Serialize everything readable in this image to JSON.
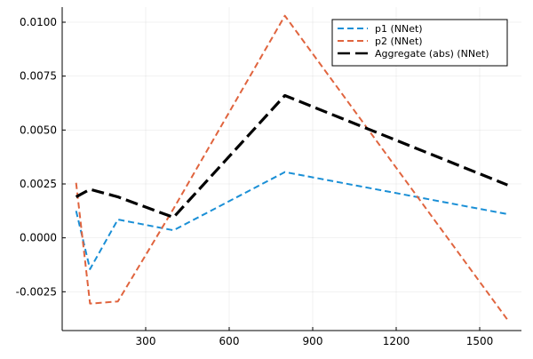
{
  "chart_data": {
    "type": "line",
    "title": "",
    "xlabel": "",
    "ylabel": "",
    "xlim": [
      0,
      1650
    ],
    "ylim": [
      -0.0043,
      0.0107
    ],
    "grid": true,
    "legend_position": "top-right",
    "x_ticks": [
      {
        "value": 300,
        "label": "300"
      },
      {
        "value": 600,
        "label": "600"
      },
      {
        "value": 900,
        "label": "900"
      },
      {
        "value": 1200,
        "label": "1200"
      },
      {
        "value": 1500,
        "label": "1500"
      }
    ],
    "y_ticks": [
      {
        "value": -0.0025,
        "label": "-0.0025"
      },
      {
        "value": 0.0,
        "label": "0.0000"
      },
      {
        "value": 0.0025,
        "label": "0.0025"
      },
      {
        "value": 0.005,
        "label": "0.0050"
      },
      {
        "value": 0.0075,
        "label": "0.0075"
      },
      {
        "value": 0.01,
        "label": "0.0100"
      }
    ],
    "series": [
      {
        "name": "p1 (NNet)",
        "color": "#1a8fd6",
        "dash": "dash",
        "width": 2,
        "x": [
          50,
          100,
          200,
          400,
          800,
          1600
        ],
        "y": [
          0.00125,
          -0.00145,
          0.00085,
          0.00035,
          0.00305,
          0.0011
        ]
      },
      {
        "name": "p2 (NNet)",
        "color": "#e0643e",
        "dash": "dash",
        "width": 2,
        "x": [
          50,
          100,
          200,
          400,
          800,
          1600
        ],
        "y": [
          0.00255,
          -0.00305,
          -0.00295,
          0.00135,
          0.0103,
          -0.0038
        ]
      },
      {
        "name": "Aggregate (abs) (NNet)",
        "color": "#000000",
        "dash": "longdash",
        "width": 3.2,
        "x": [
          50,
          100,
          200,
          400,
          800,
          1600
        ],
        "y": [
          0.0019,
          0.00225,
          0.0019,
          0.00095,
          0.0066,
          0.00245
        ]
      }
    ]
  }
}
